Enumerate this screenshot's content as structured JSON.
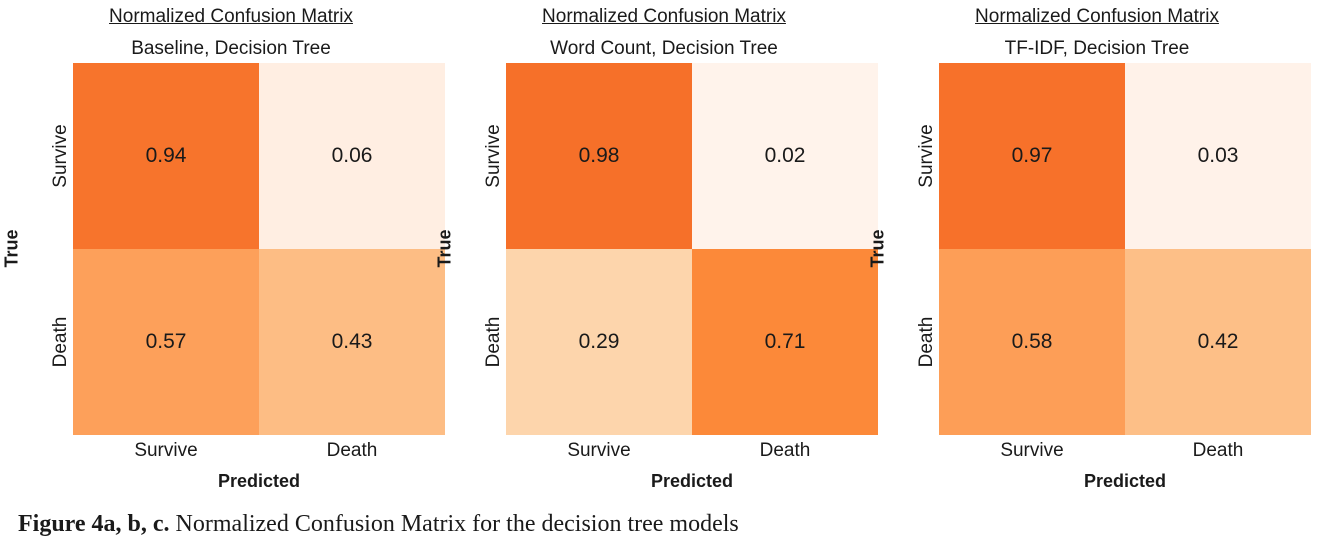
{
  "caption": {
    "label": "Figure 4a, b, c.",
    "text": " Normalized Confusion Matrix for the decision tree models"
  },
  "chart_data": [
    {
      "type": "heatmap",
      "title": "Normalized Confusion Matrix",
      "subtitle": "Baseline, Decision Tree",
      "xlabel": "Predicted",
      "ylabel": "True",
      "x_categories": [
        "Survive",
        "Death"
      ],
      "y_categories": [
        "Survive",
        "Death"
      ],
      "values": [
        [
          0.94,
          0.06
        ],
        [
          0.57,
          0.43
        ]
      ],
      "colormap": "Oranges",
      "colorbar": false
    },
    {
      "type": "heatmap",
      "title": "Normalized Confusion Matrix",
      "subtitle": "Word Count, Decision Tree",
      "xlabel": "Predicted",
      "ylabel": "True",
      "x_categories": [
        "Survive",
        "Death"
      ],
      "y_categories": [
        "Survive",
        "Death"
      ],
      "values": [
        [
          0.98,
          0.02
        ],
        [
          0.29,
          0.71
        ]
      ],
      "colormap": "Oranges",
      "colorbar": false
    },
    {
      "type": "heatmap",
      "title": "Normalized Confusion Matrix",
      "subtitle": "TF-IDF, Decision Tree",
      "xlabel": "Predicted",
      "ylabel": "True",
      "x_categories": [
        "Survive",
        "Death"
      ],
      "y_categories": [
        "Survive",
        "Death"
      ],
      "values": [
        [
          0.97,
          0.03
        ],
        [
          0.58,
          0.42
        ]
      ],
      "colormap": "Oranges",
      "colorbar": false
    }
  ]
}
